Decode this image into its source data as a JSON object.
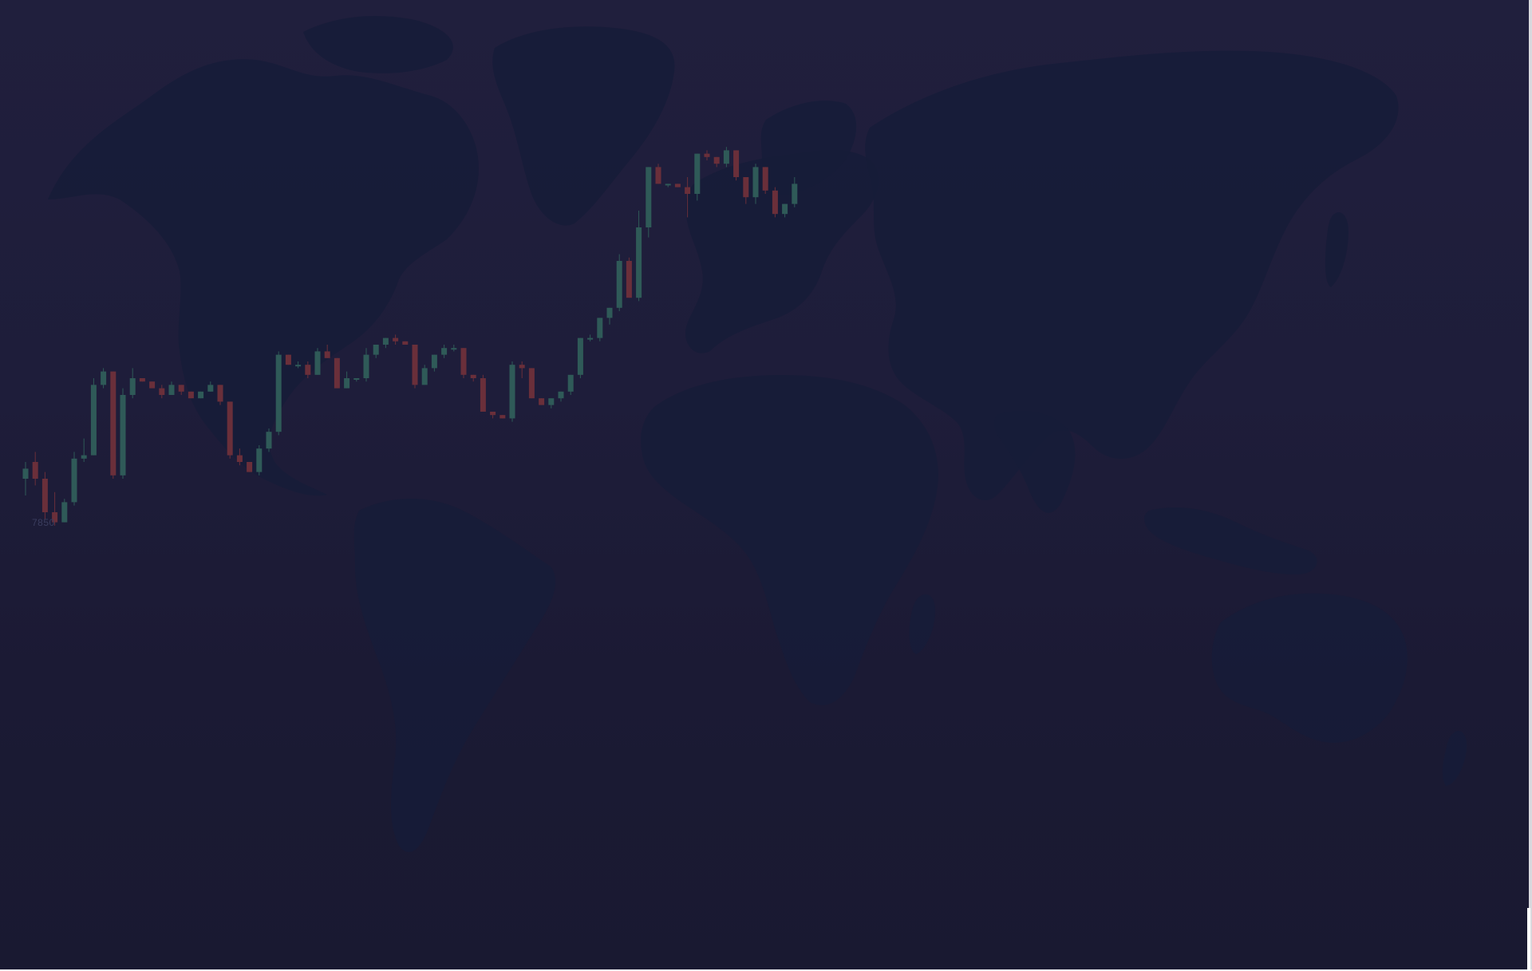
{
  "background": {
    "gradient_top": "#201f3d",
    "gradient_bottom": "#191931",
    "landmass_color": "#161c38"
  },
  "chart": {
    "axis_label": "7850",
    "rising_color": "#2f5a58",
    "falling_color": "#6a2f3a",
    "candles": [
      [
        0,
        5,
        -5,
        3
      ],
      [
        5,
        8,
        -2,
        0
      ],
      [
        0,
        2,
        -12,
        -10
      ],
      [
        -10,
        -4,
        -14,
        -13
      ],
      [
        -13,
        -6,
        -13,
        -7
      ],
      [
        -7,
        8,
        -8,
        6
      ],
      [
        6,
        12,
        5,
        7
      ],
      [
        7,
        30,
        7,
        28
      ],
      [
        28,
        33,
        27,
        32
      ],
      [
        32,
        32,
        0,
        1
      ],
      [
        1,
        27,
        0,
        25
      ],
      [
        25,
        33,
        24,
        30
      ],
      [
        30,
        30,
        29,
        29
      ],
      [
        29,
        29,
        27,
        27
      ],
      [
        27,
        28,
        24,
        25
      ],
      [
        25,
        29,
        25,
        28
      ],
      [
        28,
        28,
        25,
        26
      ],
      [
        26,
        26,
        24,
        24
      ],
      [
        24,
        26,
        24,
        26
      ],
      [
        26,
        29,
        26,
        28
      ],
      [
        28,
        28,
        22,
        23
      ],
      [
        23,
        23,
        6,
        7
      ],
      [
        7,
        9,
        4,
        5
      ],
      [
        5,
        5,
        2,
        2
      ],
      [
        2,
        10,
        1,
        9
      ],
      [
        9,
        15,
        8,
        14
      ],
      [
        14,
        38,
        13,
        37
      ],
      [
        37,
        37,
        34,
        34
      ],
      [
        34,
        35,
        33,
        34
      ],
      [
        34,
        35,
        30,
        31
      ],
      [
        31,
        39,
        31,
        38
      ],
      [
        38,
        40,
        36,
        36
      ],
      [
        36,
        36,
        27,
        27
      ],
      [
        27,
        32,
        27,
        30
      ],
      [
        30,
        30,
        29,
        30
      ],
      [
        30,
        39,
        29,
        37
      ],
      [
        37,
        40,
        36,
        40
      ],
      [
        40,
        42,
        39,
        42
      ],
      [
        42,
        43,
        40,
        41
      ],
      [
        41,
        41,
        40,
        40
      ],
      [
        40,
        40,
        27,
        28
      ],
      [
        28,
        34,
        28,
        33
      ],
      [
        33,
        37,
        32,
        37
      ],
      [
        37,
        40,
        36,
        39
      ],
      [
        39,
        40,
        38,
        39
      ],
      [
        39,
        39,
        30,
        31
      ],
      [
        31,
        31,
        29,
        30
      ],
      [
        30,
        31,
        20,
        20
      ],
      [
        20,
        20,
        18,
        19
      ],
      [
        19,
        19,
        18,
        18
      ],
      [
        18,
        35,
        17,
        34
      ],
      [
        34,
        35,
        30,
        33
      ],
      [
        33,
        33,
        24,
        24
      ],
      [
        24,
        24,
        22,
        22
      ],
      [
        22,
        24,
        21,
        24
      ],
      [
        24,
        26,
        23,
        26
      ],
      [
        26,
        31,
        25,
        31
      ],
      [
        31,
        42,
        30,
        42
      ],
      [
        42,
        43,
        41,
        42
      ],
      [
        42,
        48,
        41,
        48
      ],
      [
        48,
        51,
        46,
        51
      ],
      [
        51,
        67,
        50,
        65
      ],
      [
        65,
        66,
        54,
        54
      ],
      [
        54,
        80,
        53,
        75
      ],
      [
        75,
        93,
        72,
        93
      ],
      [
        93,
        94,
        88,
        88
      ],
      [
        88,
        88,
        87,
        88
      ],
      [
        88,
        88,
        87,
        87
      ],
      [
        87,
        90,
        78,
        85
      ],
      [
        85,
        97,
        83,
        97
      ],
      [
        97,
        98,
        95,
        96
      ],
      [
        96,
        96,
        93,
        94
      ],
      [
        94,
        99,
        93,
        98
      ],
      [
        98,
        98,
        89,
        90
      ],
      [
        90,
        90,
        82,
        84
      ],
      [
        84,
        94,
        82,
        93
      ],
      [
        93,
        93,
        85,
        86
      ],
      [
        86,
        87,
        78,
        79
      ],
      [
        79,
        82,
        78,
        82
      ],
      [
        82,
        90,
        81,
        88
      ]
    ]
  }
}
